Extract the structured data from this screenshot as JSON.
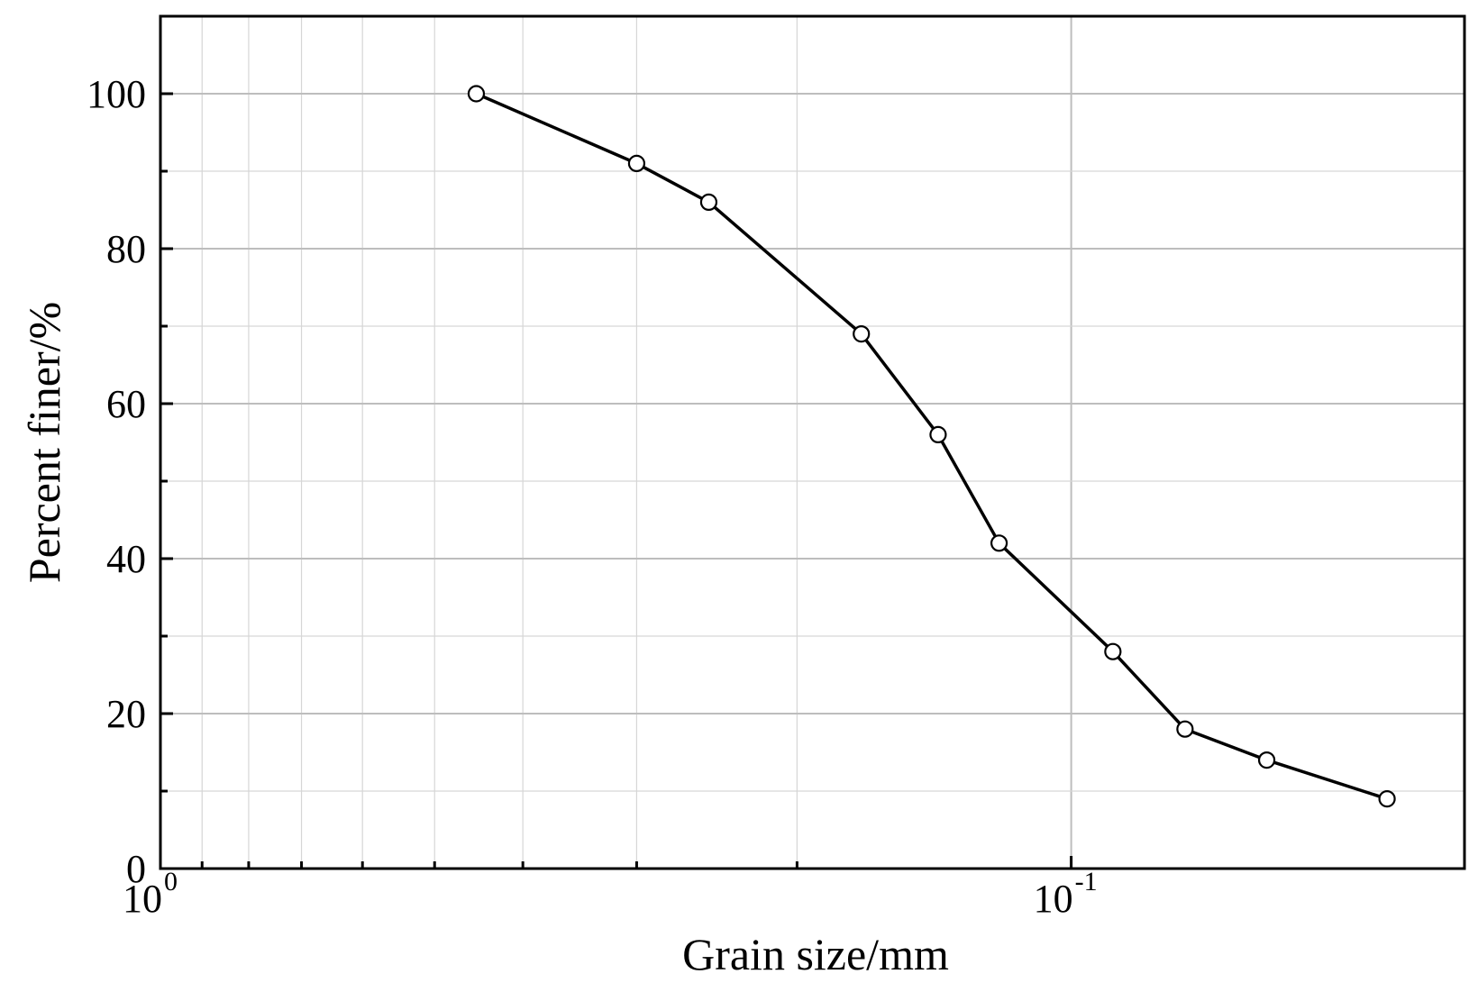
{
  "chart_data": {
    "type": "line",
    "title": "",
    "xlabel": "Grain size/mm",
    "ylabel": "Percent finer/%",
    "x_scale": "log",
    "x_direction": "reversed",
    "xlim": [
      1,
      0.037
    ],
    "ylim": [
      0,
      110
    ],
    "x_ticks": [
      {
        "value": 1,
        "base": "10",
        "exp": "0"
      },
      {
        "value": 0.1,
        "base": "10",
        "exp": "-1"
      }
    ],
    "y_ticks": [
      "0",
      "20",
      "40",
      "60",
      "80",
      "100"
    ],
    "grid": true,
    "legend": "none",
    "colors": {
      "line": "#000000",
      "marker_fill": "#ffffff",
      "marker_stroke": "#000000"
    },
    "series": [
      {
        "x": [
          0.45,
          0.3,
          0.25,
          0.17,
          0.14,
          0.12,
          0.09,
          0.075,
          0.061,
          0.045
        ],
        "y": [
          100,
          91,
          86,
          69,
          56,
          42,
          28,
          18,
          14,
          9
        ]
      }
    ]
  }
}
